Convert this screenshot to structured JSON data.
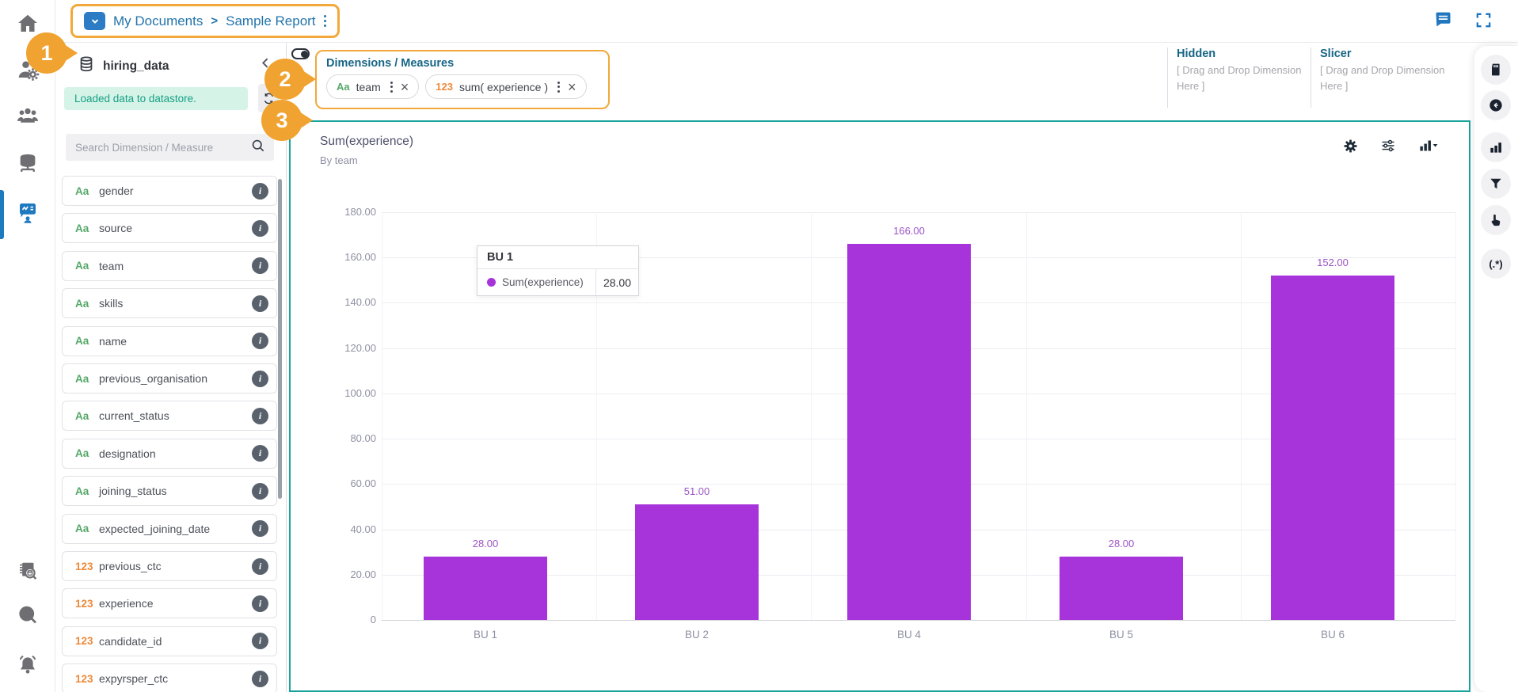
{
  "topbar": {
    "breadcrumb": {
      "items": [
        "My Documents",
        "Sample Report"
      ],
      "separator": ">"
    }
  },
  "icons": {
    "sidebar": [
      "home",
      "user-settings",
      "team-members",
      "data-store",
      "data-report-active",
      "data-catalog-search",
      "data-search",
      "notifications"
    ],
    "topbar": [
      "folder-dropdown",
      "comment",
      "fullscreen"
    ],
    "fields_panel": [
      "database",
      "chevron-left",
      "refresh",
      "search"
    ],
    "chart_toolbar": [
      "settings-gear",
      "options-sliders",
      "chart-type-selector"
    ],
    "rail": [
      "memory-card",
      "back-arrow",
      "bar-chart",
      "filter-funnel",
      "hand-pointer",
      "regex"
    ]
  },
  "fields_panel": {
    "title": "hiring_data",
    "status_message": "Loaded data to datastore.",
    "search_placeholder": "Search Dimension / Measure",
    "fields": [
      {
        "type": "Aa",
        "name": "gender"
      },
      {
        "type": "Aa",
        "name": "source"
      },
      {
        "type": "Aa",
        "name": "team"
      },
      {
        "type": "Aa",
        "name": "skills"
      },
      {
        "type": "Aa",
        "name": "name"
      },
      {
        "type": "Aa",
        "name": "previous_organisation"
      },
      {
        "type": "Aa",
        "name": "current_status"
      },
      {
        "type": "Aa",
        "name": "designation"
      },
      {
        "type": "Aa",
        "name": "joining_status"
      },
      {
        "type": "Aa",
        "name": "expected_joining_date"
      },
      {
        "type": "123",
        "name": "previous_ctc"
      },
      {
        "type": "123",
        "name": "experience"
      },
      {
        "type": "123",
        "name": "candidate_id"
      },
      {
        "type": "123",
        "name": "expyrsper_ctc"
      }
    ]
  },
  "dims_panel": {
    "title": "Dimensions / Measures",
    "chips": [
      {
        "type_label": "Aa",
        "label": "team"
      },
      {
        "type_label": "123",
        "label": "sum( experience )"
      }
    ],
    "hidden": {
      "title": "Hidden",
      "hint": "[ Drag and Drop Dimension Here ]"
    },
    "slicer": {
      "title": "Slicer",
      "hint": "[ Drag and Drop Dimension Here ]"
    }
  },
  "chart_data": {
    "type": "bar",
    "title": "Sum(experience)",
    "subtitle": "By team",
    "series_name": "Sum(experience)",
    "categories": [
      "BU 1",
      "BU 2",
      "BU 4",
      "BU 5",
      "BU 6"
    ],
    "values": [
      28,
      51,
      166,
      28,
      152
    ],
    "value_labels": [
      "28.00",
      "51.00",
      "166.00",
      "28.00",
      "152.00"
    ],
    "ylim": [
      0,
      180
    ],
    "ytick_step": 20,
    "ytick_labels": [
      "180.00",
      "160.00",
      "140.00",
      "120.00",
      "100.00",
      "80.00",
      "60.00",
      "40.00",
      "20.00",
      "0"
    ],
    "grid": true,
    "legend": "none",
    "bar_color": "#a734db",
    "value_label_color": "#9c54c7"
  },
  "tooltip": {
    "header": "BU 1",
    "series_label": "Sum(experience)",
    "value": "28.00"
  },
  "rail": {
    "regex_label": "(.*)"
  },
  "callouts": {
    "labels": [
      "1",
      "2",
      "3"
    ]
  },
  "colors": {
    "accent_orange": "#f2a83b",
    "callout_orange": "#f0a330",
    "breadcrumb_blue": "#2374ab",
    "heading_blue": "#166585",
    "teal_border": "#18a39b",
    "status_bg": "#d6f3e8",
    "status_text": "#16a085",
    "text_type_green": "#55a868",
    "text_type_orange": "#ed8a3b",
    "bar_purple": "#a734db"
  }
}
